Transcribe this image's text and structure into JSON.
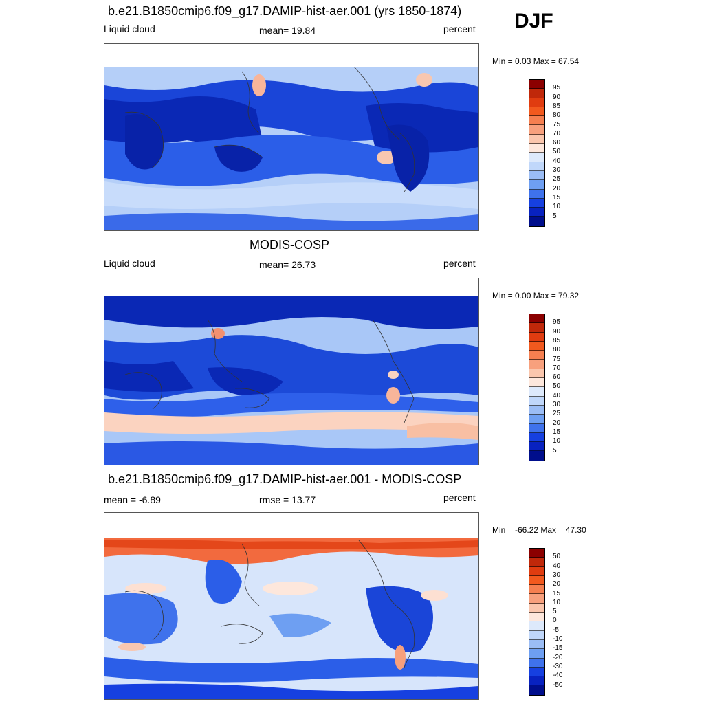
{
  "season": "DJF",
  "panels": [
    {
      "title": "b.e21.B1850cmip6.f09_g17.DAMIP-hist-aer.001 (yrs 1850-1874)",
      "left": "Liquid cloud",
      "center": "mean=  19.84",
      "right": "percent",
      "minmax": "Min =   0.03 Max =  67.54",
      "scale": "abs"
    },
    {
      "title": "MODIS-COSP",
      "left": "Liquid cloud",
      "center": "mean=  26.73",
      "right": "percent",
      "minmax": "Min =   0.00 Max =  79.32",
      "scale": "abs"
    },
    {
      "title": "b.e21.B1850cmip6.f09_g17.DAMIP-hist-aer.001 - MODIS-COSP",
      "left": "mean =  -6.89",
      "center": "rmse =  13.77",
      "right": "percent",
      "minmax": "Min = -66.22 Max =  47.30",
      "scale": "diff"
    }
  ],
  "colorbars": {
    "abs": {
      "labels": [
        "95",
        "90",
        "85",
        "80",
        "75",
        "70",
        "60",
        "50",
        "40",
        "30",
        "25",
        "20",
        "15",
        "10",
        "5"
      ],
      "colors": [
        "#8b0000",
        "#c0280a",
        "#e03c10",
        "#f2591e",
        "#f57f50",
        "#f7a07d",
        "#fac6ad",
        "#fde7dc",
        "#dde9fb",
        "#c0d7fa",
        "#9bbdf5",
        "#6e9ff2",
        "#3f72ec",
        "#1640e0",
        "#0822c0",
        "#000e8c"
      ]
    },
    "diff": {
      "labels": [
        "50",
        "40",
        "30",
        "20",
        "15",
        "10",
        "5",
        "0",
        "-5",
        "-10",
        "-15",
        "-20",
        "-30",
        "-40",
        "-50"
      ],
      "colors": [
        "#8b0000",
        "#c0280a",
        "#e03c10",
        "#f2591e",
        "#f57f50",
        "#f7a07d",
        "#fac6ad",
        "#fde7dc",
        "#dde9fb",
        "#c0d7fa",
        "#9bbdf5",
        "#6e9ff2",
        "#3f72ec",
        "#1640e0",
        "#0822c0",
        "#000e8c"
      ]
    }
  }
}
